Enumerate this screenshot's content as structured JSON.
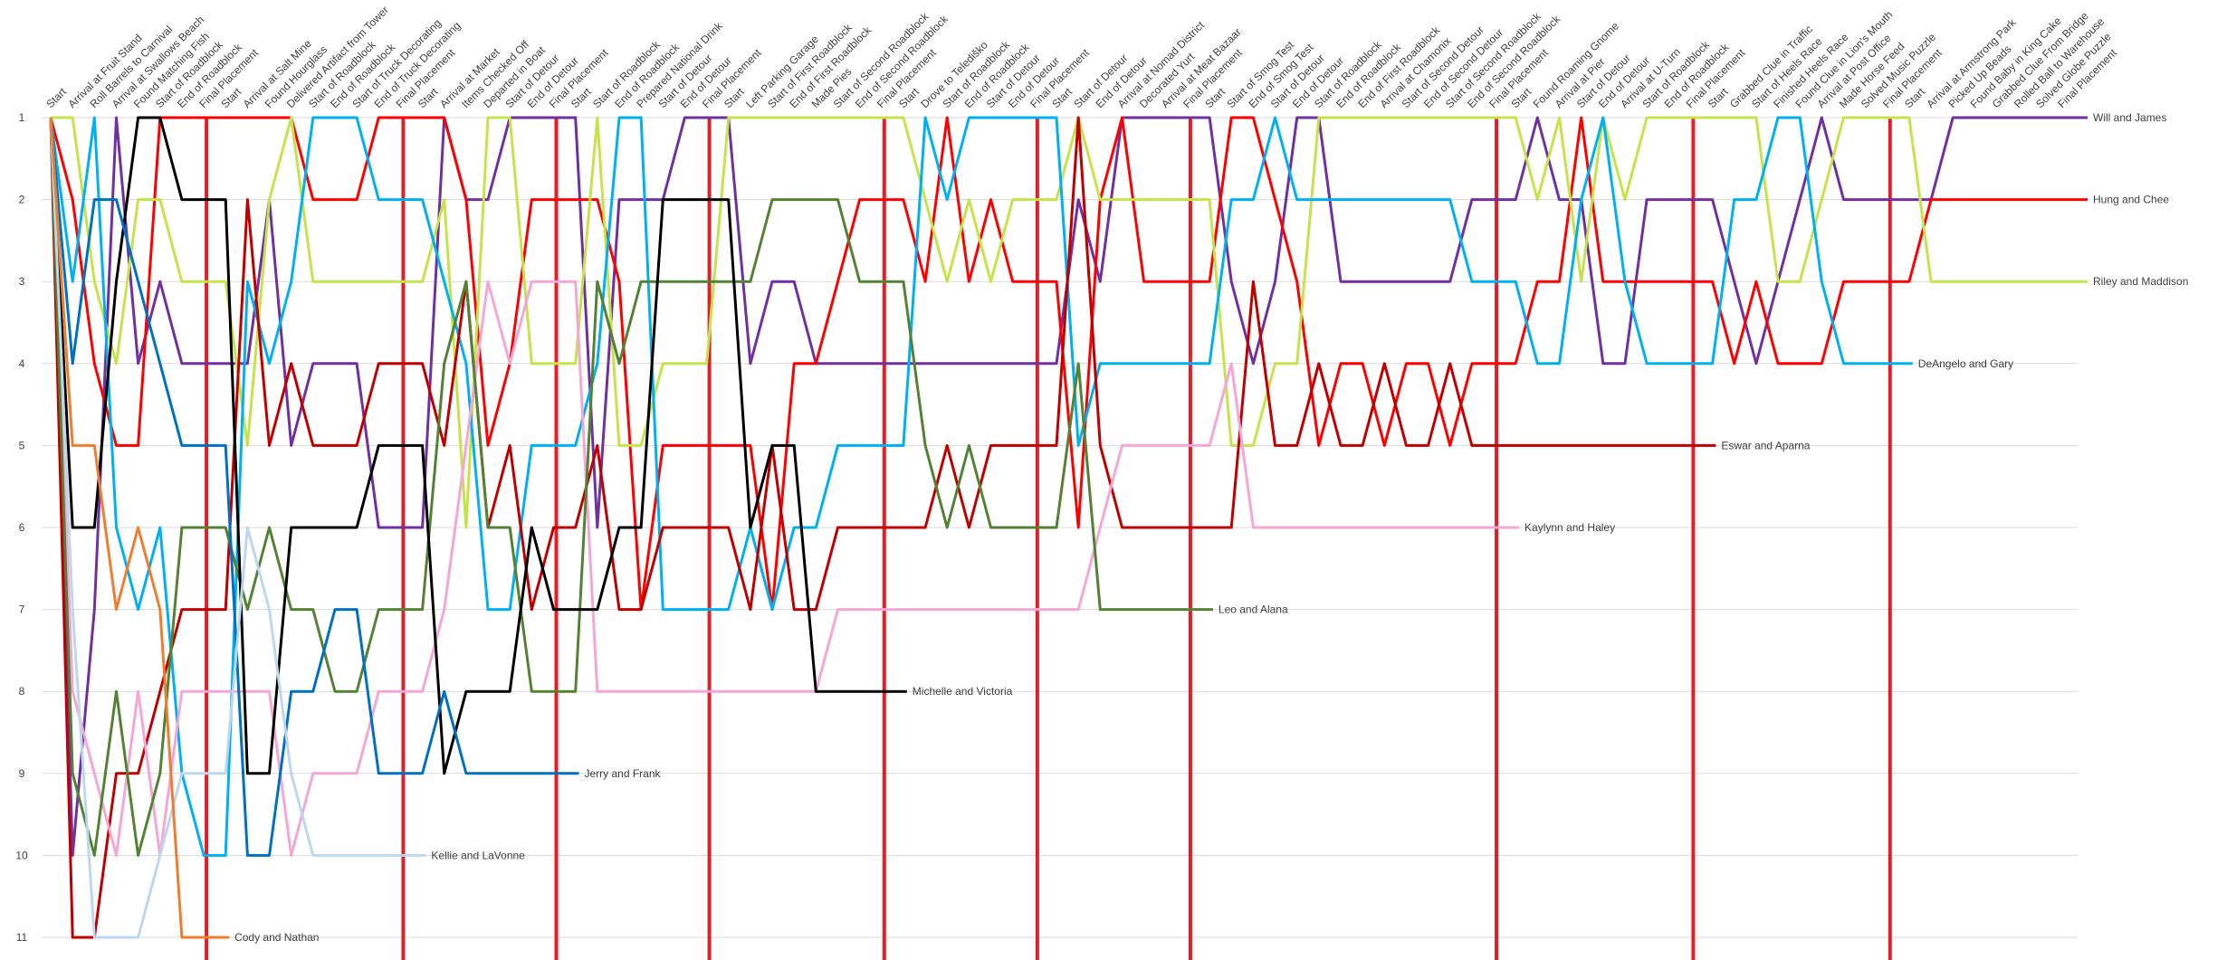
{
  "chart_data": {
    "type": "line",
    "categories": [
      "Start",
      "Arrival at Fruit Stand",
      "Roll Barrels to Carnival",
      "Arrival at Swallows Beach",
      "Found Matching Fish",
      "Start of Roadblock",
      "End of Roadblock",
      "Final Placement",
      "Start",
      "Arrival at Salt Mine",
      "Found Hourglass",
      "Delivered Artifact from Tower",
      "Start of Roadblock",
      "End of Roadblock",
      "Start of Truck Decorating",
      "End of Truck Decorating",
      "Final Placement",
      "Start",
      "Arrival at Market",
      "Items Checked Off",
      "Departed in Boat",
      "Start of Detour",
      "End of Detour",
      "Final Placement",
      "Start",
      "Start of Roadblock",
      "End of Roadblock",
      "Prepared National Drink",
      "Start of Detour",
      "End of Detour",
      "Final Placement",
      "Start",
      "Left Parking Garage",
      "Start of First Roadblock",
      "End of First Roadblock",
      "Made Pies",
      "Start of Second Roadblock",
      "End of Second Roadblock",
      "Final Placement",
      "Start",
      "Drove to Telediško",
      "Start of Roadblock",
      "End of Roadblock",
      "Start of Detour",
      "End of Detour",
      "Final Placement",
      "Start",
      "Start of Detour",
      "End of Detour",
      "Arrival at Nomad District",
      "Decorated Yurt",
      "Arrival at Meat Bazaar",
      "Final Placement",
      "Start",
      "Start of Smog Test",
      "End of Smog Test",
      "Start of Detour",
      "End of Detour",
      "Start of Roadblock",
      "End of Roadblock",
      "End of First Roadblock",
      "Arrival at Chamonix",
      "Start of Second Detour",
      "End of Second Detour",
      "Start of Second Roadblock",
      "End of Second Roadblock",
      "Final Placement",
      "Start",
      "Found Roaming Gnome",
      "Arrival at Pier",
      "Start of Detour",
      "End of Detour",
      "Arrival at U-Turn",
      "Start of Roadblock",
      "End of Roadblock",
      "Final Placement",
      "Start",
      "Grabbed Clue in Traffic",
      "Start of Heels Race",
      "Finished Heels Race",
      "Found Clue in Lion's Mouth",
      "Arrival at Post Office",
      "Made Horse Feed",
      "Solved Music Puzzle",
      "Final Placement",
      "Start",
      "Arrival at Armstrong Park",
      "Picked Up Beads",
      "Found Baby in King Cake",
      "Grabbed Clue From Bridge",
      "Rolled Ball to Warehouse",
      "Solved Globe Puzzle",
      "Final Placement"
    ],
    "ylim": [
      1,
      11
    ],
    "y_reversed": true,
    "yticks": [
      1,
      2,
      3,
      4,
      5,
      6,
      7,
      8,
      9,
      10,
      11
    ],
    "grid": true,
    "series": [
      {
        "name": "Will and James",
        "color": "#7030a0",
        "values": [
          1,
          10,
          7,
          1,
          4,
          3,
          4,
          4,
          4,
          4,
          2,
          5,
          4,
          4,
          4,
          6,
          6,
          6,
          1,
          2,
          2,
          1,
          1,
          1,
          1,
          6,
          2,
          2,
          2,
          1,
          1,
          1,
          4,
          3,
          3,
          4,
          4,
          4,
          4,
          4,
          4,
          4,
          4,
          4,
          4,
          4,
          4,
          2,
          3,
          1,
          1,
          1,
          1,
          1,
          3,
          4,
          3,
          1,
          1,
          3,
          3,
          3,
          3,
          3,
          3,
          2,
          2,
          2,
          1,
          2,
          2,
          4,
          4,
          2,
          2,
          2,
          2,
          3,
          4,
          3,
          2,
          1,
          2,
          2,
          2,
          2,
          2,
          1,
          1,
          1,
          1,
          1,
          1
        ]
      },
      {
        "name": "Hung and Chee",
        "color": "#ff0000",
        "values": [
          1,
          2,
          4,
          5,
          5,
          1,
          1,
          1,
          1,
          1,
          1,
          1,
          2,
          2,
          2,
          1,
          1,
          1,
          1,
          2,
          5,
          4,
          2,
          2,
          2,
          2,
          3,
          7,
          5,
          5,
          5,
          5,
          5,
          7,
          4,
          4,
          3,
          2,
          2,
          2,
          3,
          1,
          3,
          2,
          3,
          3,
          3,
          6,
          2,
          1,
          3,
          3,
          3,
          3,
          1,
          1,
          2,
          3,
          5,
          4,
          4,
          5,
          4,
          4,
          5,
          4,
          4,
          4,
          3,
          3,
          1,
          3,
          3,
          3,
          3,
          3,
          3,
          4,
          3,
          4,
          4,
          4,
          3,
          3,
          3,
          3,
          2,
          2,
          2,
          2,
          2,
          2,
          2
        ]
      },
      {
        "name": "Riley and Maddison",
        "color": "#c5e34a",
        "values": [
          1,
          1,
          3,
          4,
          2,
          2,
          3,
          3,
          3,
          5,
          2,
          1,
          3,
          3,
          3,
          3,
          3,
          3,
          2,
          6,
          1,
          1,
          4,
          4,
          4,
          1,
          5,
          5,
          4,
          4,
          4,
          1,
          1,
          1,
          1,
          1,
          1,
          1,
          1,
          1,
          2,
          3,
          2,
          3,
          2,
          2,
          2,
          1,
          2,
          2,
          2,
          2,
          2,
          2,
          5,
          5,
          4,
          4,
          1,
          1,
          1,
          1,
          1,
          1,
          1,
          1,
          1,
          1,
          2,
          1,
          3,
          1,
          2,
          1,
          1,
          1,
          1,
          1,
          1,
          3,
          3,
          2,
          1,
          1,
          1,
          1,
          3,
          3,
          3,
          3,
          3,
          3,
          3
        ]
      },
      {
        "name": "DeAngelo and Gary",
        "color": "#00b0f0",
        "values": [
          1,
          3,
          1,
          6,
          7,
          6,
          9,
          10,
          10,
          3,
          4,
          3,
          1,
          1,
          1,
          2,
          2,
          2,
          3,
          4,
          7,
          7,
          5,
          5,
          5,
          4,
          1,
          1,
          7,
          7,
          7,
          7,
          6,
          7,
          6,
          6,
          5,
          5,
          5,
          5,
          1,
          2,
          1,
          1,
          1,
          1,
          1,
          5,
          4,
          4,
          4,
          4,
          4,
          4,
          2,
          2,
          1,
          2,
          2,
          2,
          2,
          2,
          2,
          2,
          2,
          3,
          3,
          3,
          4,
          4,
          2,
          1,
          3,
          4,
          4,
          4,
          4,
          2,
          2,
          1,
          1,
          3,
          4,
          4,
          4,
          null,
          null,
          null,
          null,
          null,
          null,
          null,
          null
        ]
      },
      {
        "name": "Eswar and Aparna",
        "color": "#c00000",
        "values": [
          1,
          11,
          11,
          9,
          9,
          8,
          7,
          7,
          7,
          2,
          5,
          4,
          5,
          5,
          5,
          4,
          4,
          4,
          5,
          3,
          6,
          5,
          7,
          6,
          6,
          5,
          7,
          7,
          6,
          6,
          6,
          6,
          7,
          5,
          7,
          7,
          6,
          6,
          6,
          6,
          6,
          5,
          6,
          5,
          5,
          5,
          5,
          1,
          5,
          6,
          6,
          6,
          6,
          6,
          6,
          3,
          5,
          5,
          4,
          5,
          5,
          4,
          5,
          5,
          4,
          5,
          5,
          5,
          5,
          5,
          5,
          5,
          5,
          5,
          5,
          5,
          null,
          null,
          null,
          null,
          null,
          null,
          null,
          null,
          null,
          null,
          null,
          null,
          null,
          null,
          null,
          null,
          null
        ]
      },
      {
        "name": "Kaylynn and Haley",
        "color": "#f4a7d6",
        "values": [
          1,
          8,
          9,
          10,
          8,
          10,
          8,
          8,
          8,
          8,
          8,
          10,
          9,
          9,
          9,
          8,
          8,
          8,
          7,
          5,
          3,
          4,
          3,
          3,
          3,
          8,
          8,
          8,
          8,
          8,
          8,
          8,
          8,
          8,
          8,
          8,
          7,
          7,
          7,
          7,
          7,
          7,
          7,
          7,
          7,
          7,
          7,
          7,
          6,
          5,
          5,
          5,
          5,
          5,
          4,
          6,
          6,
          6,
          6,
          6,
          6,
          6,
          6,
          6,
          6,
          6,
          6,
          null,
          null,
          null,
          null,
          null,
          null,
          null,
          null,
          null,
          null,
          null,
          null,
          null,
          null,
          null,
          null,
          null,
          null,
          null,
          null,
          null,
          null,
          null,
          null,
          null,
          null
        ]
      },
      {
        "name": "Leo and Alana",
        "color": "#548235",
        "values": [
          1,
          9,
          10,
          8,
          10,
          9,
          6,
          6,
          6,
          7,
          6,
          7,
          7,
          8,
          8,
          7,
          7,
          7,
          4,
          3,
          6,
          6,
          8,
          8,
          8,
          3,
          4,
          3,
          3,
          3,
          3,
          3,
          3,
          2,
          2,
          2,
          2,
          3,
          3,
          3,
          5,
          6,
          5,
          6,
          6,
          6,
          6,
          4,
          7,
          7,
          7,
          7,
          7,
          null,
          null,
          null,
          null,
          null,
          null,
          null,
          null,
          null,
          null,
          null,
          null,
          null,
          null,
          null,
          null,
          null,
          null,
          null,
          null,
          null,
          null,
          null,
          null,
          null,
          null,
          null,
          null,
          null,
          null,
          null,
          null,
          null,
          null,
          null,
          null,
          null,
          null,
          null,
          null
        ]
      },
      {
        "name": "Michelle and Victoria",
        "color": "#000000",
        "values": [
          1,
          6,
          6,
          3,
          1,
          1,
          2,
          2,
          2,
          9,
          9,
          6,
          6,
          6,
          6,
          5,
          5,
          5,
          9,
          8,
          8,
          8,
          6,
          7,
          7,
          7,
          6,
          6,
          2,
          2,
          2,
          2,
          6,
          5,
          5,
          8,
          8,
          8,
          8,
          null,
          null,
          null,
          null,
          null,
          null,
          null,
          null,
          null,
          null,
          null,
          null,
          null,
          null,
          null,
          null,
          null,
          null,
          null,
          null,
          null,
          null,
          null,
          null,
          null,
          null,
          null,
          null,
          null,
          null,
          null,
          null,
          null,
          null,
          null,
          null,
          null,
          null,
          null,
          null,
          null,
          null,
          null,
          null,
          null,
          null,
          null,
          null,
          null,
          null,
          null,
          null,
          null,
          null
        ]
      },
      {
        "name": "Jerry and Frank",
        "color": "#0070c0",
        "values": [
          1,
          4,
          2,
          2,
          3,
          4,
          5,
          5,
          5,
          10,
          10,
          8,
          8,
          7,
          7,
          9,
          9,
          9,
          8,
          9,
          9,
          9,
          9,
          9,
          null,
          null,
          null,
          null,
          null,
          null,
          null,
          null,
          null,
          null,
          null,
          null,
          null,
          null,
          null,
          null,
          null,
          null,
          null,
          null,
          null,
          null,
          null,
          null,
          null,
          null,
          null,
          null,
          null,
          null,
          null,
          null,
          null,
          null,
          null,
          null,
          null,
          null,
          null,
          null,
          null,
          null,
          null,
          null,
          null,
          null,
          null,
          null,
          null,
          null,
          null,
          null,
          null,
          null,
          null,
          null,
          null,
          null,
          null,
          null,
          null,
          null,
          null,
          null,
          null,
          null,
          null,
          null,
          null
        ]
      },
      {
        "name": "Kellie and LaVonne",
        "color": "#bdd7ee",
        "values": [
          1,
          7,
          11,
          11,
          11,
          10,
          9,
          9,
          9,
          6,
          7,
          9,
          10,
          10,
          10,
          10,
          10,
          null,
          null,
          null,
          null,
          null,
          null,
          null,
          null,
          null,
          null,
          null,
          null,
          null,
          null,
          null,
          null,
          null,
          null,
          null,
          null,
          null,
          null,
          null,
          null,
          null,
          null,
          null,
          null,
          null,
          null,
          null,
          null,
          null,
          null,
          null,
          null,
          null,
          null,
          null,
          null,
          null,
          null,
          null,
          null,
          null,
          null,
          null,
          null,
          null,
          null,
          null,
          null,
          null,
          null,
          null,
          null,
          null,
          null,
          null,
          null,
          null,
          null,
          null,
          null,
          null,
          null,
          null,
          null,
          null,
          null,
          null,
          null,
          null,
          null,
          null,
          null
        ]
      },
      {
        "name": "Cody and Nathan",
        "color": "#ed7d31",
        "values": [
          1,
          5,
          5,
          7,
          6,
          7,
          11,
          11,
          null,
          null,
          null,
          null,
          null,
          null,
          null,
          null,
          null,
          null,
          null,
          null,
          null,
          null,
          null,
          null,
          null,
          null,
          null,
          null,
          null,
          null,
          null,
          null,
          null,
          null,
          null,
          null,
          null,
          null,
          null,
          null,
          null,
          null,
          null,
          null,
          null,
          null,
          null,
          null,
          null,
          null,
          null,
          null,
          null,
          null,
          null,
          null,
          null,
          null,
          null,
          null,
          null,
          null,
          null,
          null,
          null,
          null,
          null,
          null,
          null,
          null,
          null,
          null,
          null,
          null,
          null,
          null,
          null,
          null,
          null,
          null,
          null,
          null,
          null,
          null,
          null,
          null,
          null,
          null,
          null,
          null,
          null,
          null,
          null
        ]
      }
    ]
  }
}
